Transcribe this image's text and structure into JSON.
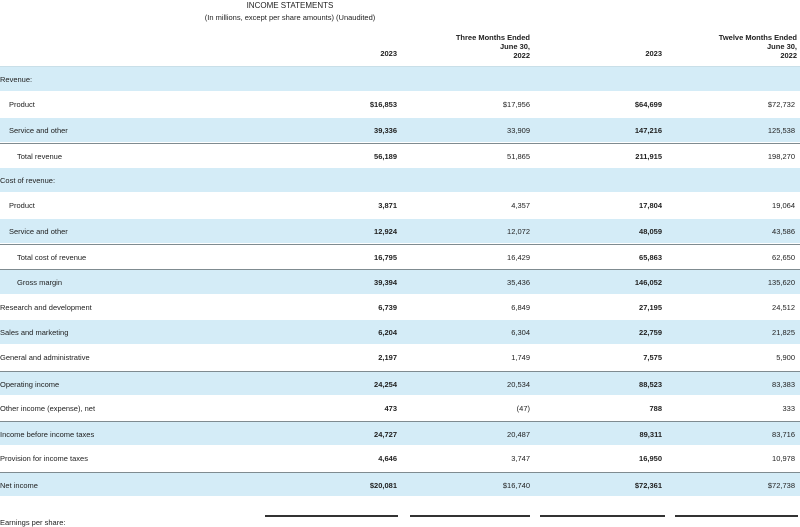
{
  "title": "INCOME STATEMENTS",
  "subtitle": "(In millions, except per share amounts) (Unaudited)",
  "headers": {
    "three_months": [
      "Three Months Ended",
      "June 30,"
    ],
    "twelve_months": [
      "Twelve Months Ended",
      "June 30,"
    ],
    "years": [
      "2023",
      "2022",
      "2023",
      "2022"
    ]
  },
  "rows": [
    {
      "label": "Revenue:",
      "indent": 0,
      "values": [
        "",
        "",
        "",
        ""
      ]
    },
    {
      "label": "Product",
      "indent": 1,
      "values": [
        "$16,853",
        "$17,956",
        "$64,699",
        "$72,732"
      ]
    },
    {
      "label": "Service and other",
      "indent": 1,
      "values": [
        "39,336",
        "33,909",
        "147,216",
        "125,538"
      ]
    },
    {
      "label": "Total revenue",
      "indent": 2,
      "values": [
        "56,189",
        "51,865",
        "211,915",
        "198,270"
      ]
    },
    {
      "label": "Cost of revenue:",
      "indent": 0,
      "values": [
        "",
        "",
        "",
        ""
      ]
    },
    {
      "label": "Product",
      "indent": 1,
      "values": [
        "3,871",
        "4,357",
        "17,804",
        "19,064"
      ]
    },
    {
      "label": "Service and other",
      "indent": 1,
      "values": [
        "12,924",
        "12,072",
        "48,059",
        "43,586"
      ]
    },
    {
      "label": "Total cost of revenue",
      "indent": 2,
      "values": [
        "16,795",
        "16,429",
        "65,863",
        "62,650"
      ]
    },
    {
      "label": "Gross margin",
      "indent": 2,
      "values": [
        "39,394",
        "35,436",
        "146,052",
        "135,620"
      ]
    },
    {
      "label": "Research and development",
      "indent": 0,
      "values": [
        "6,739",
        "6,849",
        "27,195",
        "24,512"
      ]
    },
    {
      "label": "Sales and marketing",
      "indent": 0,
      "values": [
        "6,204",
        "6,304",
        "22,759",
        "21,825"
      ]
    },
    {
      "label": "General and administrative",
      "indent": 0,
      "values": [
        "2,197",
        "1,749",
        "7,575",
        "5,900"
      ]
    },
    {
      "label": "Operating income",
      "indent": 0,
      "values": [
        "24,254",
        "20,534",
        "88,523",
        "83,383"
      ]
    },
    {
      "label": "Other income (expense), net",
      "indent": 0,
      "values": [
        "473",
        "(47)",
        "788",
        "333"
      ]
    },
    {
      "label": "Income before income taxes",
      "indent": 0,
      "values": [
        "24,727",
        "20,487",
        "89,311",
        "83,716"
      ]
    },
    {
      "label": "Provision for income taxes",
      "indent": 0,
      "values": [
        "4,646",
        "3,747",
        "16,950",
        "10,978"
      ]
    },
    {
      "label": "Net income",
      "indent": 0,
      "values": [
        "$20,081",
        "$16,740",
        "$72,361",
        "$72,738"
      ]
    }
  ],
  "footer_text": "Earnings per share:"
}
